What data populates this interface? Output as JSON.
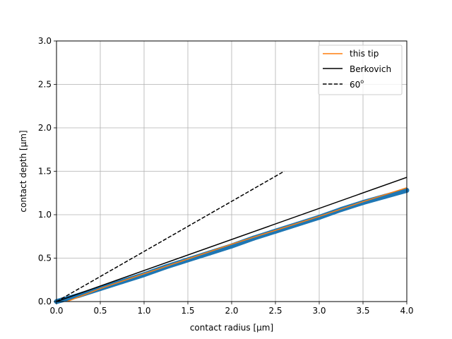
{
  "chart_data": {
    "type": "line",
    "title": "",
    "xlabel": "contact radius [µm]",
    "ylabel": "contact depth [µm]",
    "xlim": [
      0.0,
      4.0
    ],
    "ylim": [
      0.0,
      3.0
    ],
    "xticks": [
      0.0,
      0.5,
      1.0,
      1.5,
      2.0,
      2.5,
      3.0,
      3.5,
      4.0
    ],
    "yticks": [
      0.0,
      0.5,
      1.0,
      1.5,
      2.0,
      2.5,
      3.0
    ],
    "xtick_labels": [
      "0.0",
      "0.5",
      "1.0",
      "1.5",
      "2.0",
      "2.5",
      "3.0",
      "3.5",
      "4.0"
    ],
    "ytick_labels": [
      "0.0",
      "0.5",
      "1.0",
      "1.5",
      "2.0",
      "2.5",
      "3.0"
    ],
    "grid": true,
    "legend_position": "top-right",
    "colors": {
      "measured": "#1f77b4",
      "this_tip": "#ff7f0e",
      "berkovich": "#000000",
      "sixty_deg": "#000000"
    },
    "measured_points": {
      "x": [
        0.0,
        0.25,
        0.5,
        0.75,
        1.0,
        1.25,
        1.5,
        1.75,
        2.0,
        2.25,
        2.5,
        2.75,
        3.0,
        3.25,
        3.5,
        3.75,
        4.0
      ],
      "y": [
        0.0,
        0.07,
        0.15,
        0.23,
        0.31,
        0.4,
        0.48,
        0.56,
        0.64,
        0.73,
        0.81,
        0.89,
        0.97,
        1.06,
        1.14,
        1.21,
        1.28
      ]
    },
    "series": [
      {
        "name": "this tip",
        "style": "solid",
        "x": [
          0.12,
          0.5,
          1.0,
          1.5,
          2.0,
          2.5,
          3.0,
          3.5,
          4.0
        ],
        "y": [
          0.0,
          0.15,
          0.32,
          0.49,
          0.66,
          0.82,
          0.98,
          1.15,
          1.31
        ]
      },
      {
        "name": "Berkovich",
        "style": "solid",
        "x": [
          0.0,
          4.0
        ],
        "y": [
          0.0,
          1.43
        ]
      },
      {
        "name": "60°",
        "legend_label": {
          "text": "60",
          "superscript": "o"
        },
        "style": "dashed",
        "x": [
          0.0,
          2.6
        ],
        "y": [
          0.0,
          1.5
        ]
      }
    ]
  }
}
